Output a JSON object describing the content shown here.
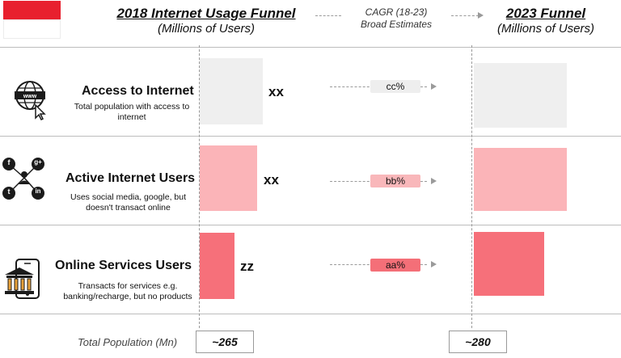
{
  "header": {
    "title_2018": "2018 Internet Usage Funnel",
    "subtitle_2018": "(Millions of Users)",
    "cagr_line1": "CAGR (18-23)",
    "cagr_line2": "Broad Estimates",
    "title_2023": "2023 Funnel",
    "subtitle_2023": "(Millions of Users)"
  },
  "rows": [
    {
      "title": "Access to Internet",
      "desc": "Total population with access to internet",
      "value_2018": "xx",
      "cagr": "cc%",
      "icon": "globe-www-icon",
      "color": "#efefef",
      "pill_color": "#eeeeee"
    },
    {
      "title": "Active Internet Users",
      "desc": "Uses social media, google, but doesn't transact online",
      "value_2018": "xx",
      "cagr": "bb%",
      "icon": "social-media-icon",
      "color": "#fbb4b8",
      "pill_color": "#f9b7ba"
    },
    {
      "title": "Online Services Users",
      "desc": "Transacts for services e.g. banking/recharge, but no products",
      "value_2018": "zz",
      "cagr": "aa%",
      "icon": "mobile-bank-icon",
      "color": "#f6707a",
      "pill_color": "#f46f78"
    }
  ],
  "social_icons": [
    "f",
    "g+",
    "t",
    "in"
  ],
  "footer": {
    "total_label": "Total Population (Mn)",
    "total_2018": "~265",
    "total_2023": "~280"
  }
}
